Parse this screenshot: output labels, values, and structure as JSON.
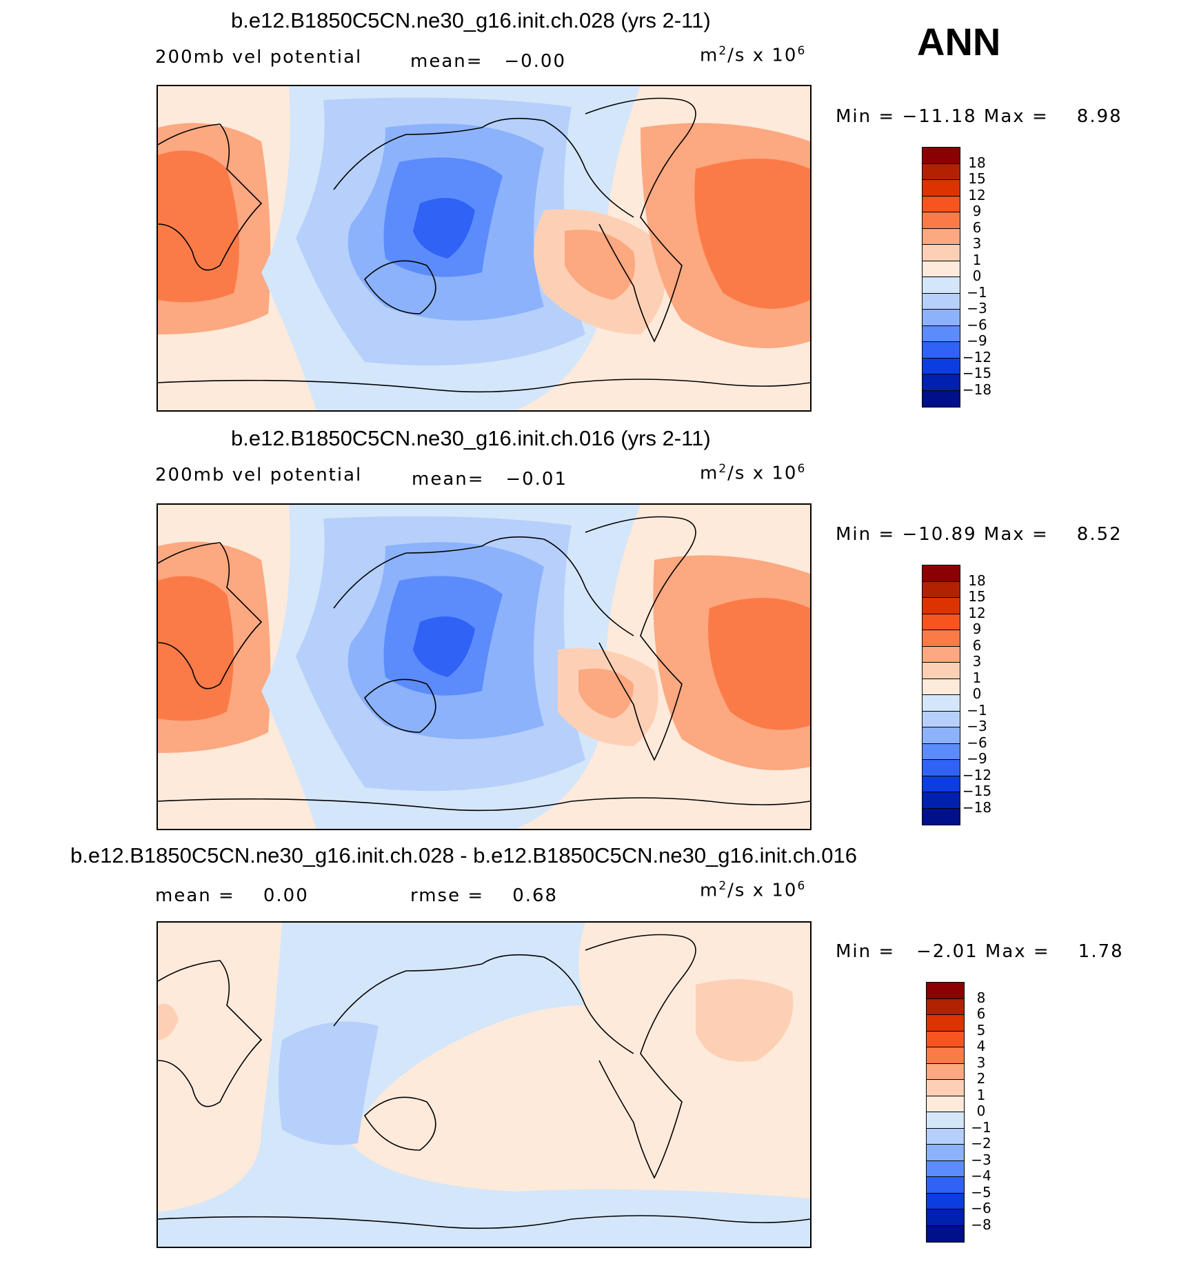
{
  "season": "ANN",
  "panels": [
    {
      "title": "b.e12.B1850C5CN.ne30_g16.init.ch.028 (yrs 2-11)",
      "variable": "200mb vel potential",
      "stat": "mean=   −0.00",
      "units_base": "m",
      "units_sup1": "2",
      "units_mid": "/s x 10",
      "units_sup2": "6",
      "minmax": "Min = −11.18 Max =    8.98",
      "colorbar_labels": [
        "18",
        "15",
        "12",
        "9",
        "6",
        "3",
        "1",
        "0",
        "−1",
        "−3",
        "−6",
        "−9",
        "−12",
        "−15",
        "−18"
      ]
    },
    {
      "title": "b.e12.B1850C5CN.ne30_g16.init.ch.016 (yrs 2-11)",
      "variable": "200mb vel potential",
      "stat": "mean=   −0.01",
      "units_base": "m",
      "units_sup1": "2",
      "units_mid": "/s x 10",
      "units_sup2": "6",
      "minmax": "Min = −10.89 Max =    8.52",
      "colorbar_labels": [
        "18",
        "15",
        "12",
        "9",
        "6",
        "3",
        "1",
        "0",
        "−1",
        "−3",
        "−6",
        "−9",
        "−12",
        "−15",
        "−18"
      ]
    },
    {
      "title": "b.e12.B1850C5CN.ne30_g16.init.ch.028 - b.e12.B1850C5CN.ne30_g16.init.ch.016",
      "stat_mean": "mean =    0.00",
      "stat_rmse": "rmse =    0.68",
      "units_base": "m",
      "units_sup1": "2",
      "units_mid": "/s x 10",
      "units_sup2": "6",
      "minmax": "Min =   −2.01 Max =    1.78",
      "colorbar_labels": [
        "8",
        "6",
        "5",
        "4",
        "3",
        "2",
        "1",
        "0",
        "−1",
        "−2",
        "−3",
        "−4",
        "−5",
        "−6",
        "−8"
      ]
    }
  ],
  "colors": {
    "scale": [
      "#8b0000",
      "#b22200",
      "#dd3300",
      "#f7551f",
      "#fb7b48",
      "#fca880",
      "#fdd0b5",
      "#feeadb",
      "#d4e6fa",
      "#b6d0fb",
      "#8cb2fc",
      "#5c8cfb",
      "#2f62f5",
      "#0b3de0",
      "#0020b0",
      "#00108a"
    ]
  }
}
